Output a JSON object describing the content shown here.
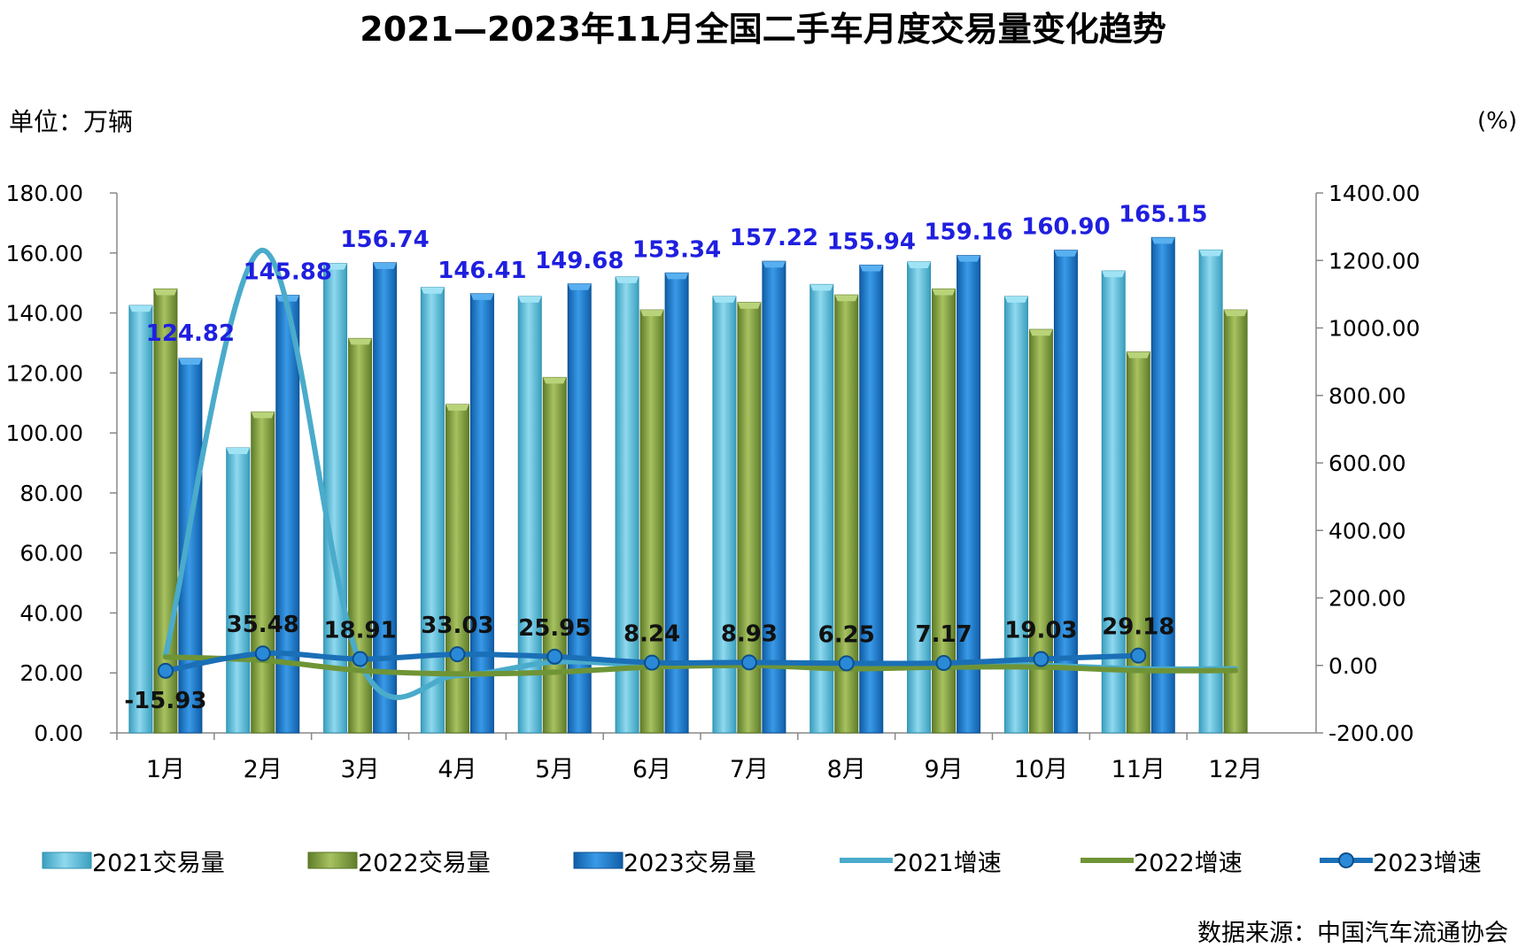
{
  "title": "2021—2023年11月全国二手车月度交易量变化趋势",
  "unit_left": "单位：万辆",
  "unit_right": "(%)",
  "source": "数据来源：中国汽车流通协会",
  "colors": {
    "v2021": "#4bb8d6",
    "v2022": "#7d9a3a",
    "v2023": "#1677c9",
    "g2021": "#4aabcb",
    "g2022": "#6f9436",
    "g2023": "#1a6fb6",
    "value_label": "#1f1fe0"
  },
  "chart_data": {
    "type": "bar",
    "categories": [
      "1月",
      "2月",
      "3月",
      "4月",
      "5月",
      "6月",
      "7月",
      "8月",
      "9月",
      "10月",
      "11月",
      "12月"
    ],
    "left_axis": {
      "min": 0,
      "max": 180,
      "step": 20,
      "ticks": [
        "0.00",
        "20.00",
        "40.00",
        "60.00",
        "80.00",
        "100.00",
        "120.00",
        "140.00",
        "160.00",
        "180.00"
      ]
    },
    "right_axis": {
      "min": -200,
      "max": 1400,
      "step": 200,
      "ticks": [
        "-200.00",
        "0.00",
        "200.00",
        "400.00",
        "600.00",
        "800.00",
        "1000.00",
        "1200.00",
        "1400.00"
      ]
    },
    "series": [
      {
        "name": "2021交易量",
        "kind": "bar",
        "axis": "left",
        "values": [
          142.5,
          95.0,
          156.5,
          148.5,
          145.5,
          152.0,
          145.5,
          149.5,
          157.0,
          145.5,
          154.0,
          161.0
        ]
      },
      {
        "name": "2022交易量",
        "kind": "bar",
        "axis": "left",
        "values": [
          148.0,
          107.0,
          131.5,
          109.5,
          118.5,
          141.0,
          143.5,
          146.0,
          148.0,
          134.5,
          127.0,
          141.0
        ]
      },
      {
        "name": "2023交易量",
        "kind": "bar",
        "axis": "left",
        "values": [
          124.82,
          145.88,
          156.74,
          146.41,
          149.68,
          153.34,
          157.22,
          155.94,
          159.16,
          160.9,
          165.15,
          null
        ],
        "labels": [
          "124.82",
          "145.88",
          "156.74",
          "146.41",
          "149.68",
          "153.34",
          "157.22",
          "155.94",
          "159.16",
          "160.90",
          "165.15",
          ""
        ]
      },
      {
        "name": "2021增速",
        "kind": "line",
        "axis": "right",
        "values": [
          30,
          1230,
          10,
          -30,
          10,
          0,
          0,
          5,
          0,
          0,
          -10,
          -10
        ]
      },
      {
        "name": "2022增速",
        "kind": "line",
        "axis": "right",
        "values": [
          25,
          15,
          -15,
          -25,
          -20,
          -5,
          0,
          -10,
          -5,
          -5,
          -15,
          -15
        ]
      },
      {
        "name": "2023增速",
        "kind": "line",
        "axis": "right",
        "values": [
          -15.93,
          35.48,
          18.91,
          33.03,
          25.95,
          8.24,
          8.93,
          6.25,
          7.17,
          19.03,
          29.18,
          null
        ],
        "labels": [
          "-15.93",
          "35.48",
          "18.91",
          "33.03",
          "25.95",
          "8.24",
          "8.93",
          "6.25",
          "7.17",
          "19.03",
          "29.18",
          ""
        ]
      }
    ],
    "legend": [
      "2021交易量",
      "2022交易量",
      "2023交易量",
      "2021增速",
      "2022增速",
      "2023增速"
    ],
    "legend_position": "bottom"
  }
}
